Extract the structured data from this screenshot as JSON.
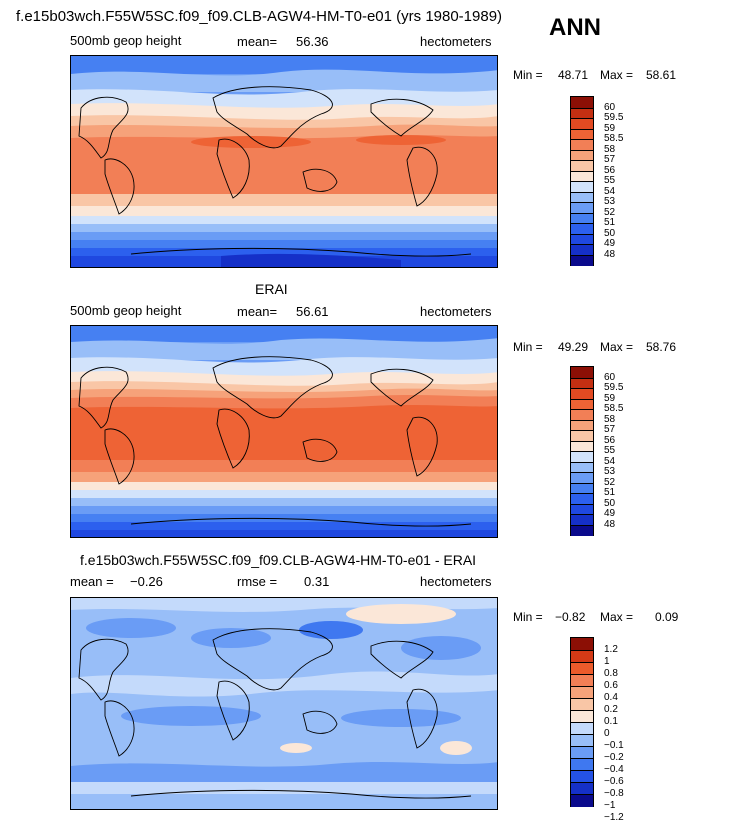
{
  "header": {
    "title": "f.e15b03wch.F55W5SC.f09_f09.CLB-AGW4-HM-T0-e01 (yrs 1980-1989)",
    "season": "ANN"
  },
  "palettes": {
    "full": [
      "#0a0a8c",
      "#1530c8",
      "#1f48e0",
      "#2c60ee",
      "#4680f2",
      "#6a9cf5",
      "#98bef8",
      "#d2e3fb",
      "#fbe7d8",
      "#f9c6a6",
      "#f6a27a",
      "#f27f56",
      "#ee6335",
      "#e34a22",
      "#c42f12",
      "#8c0f05"
    ],
    "diff": [
      "#0a0a8c",
      "#1530c8",
      "#2452e6",
      "#3f78f0",
      "#6a9cf5",
      "#98bef8",
      "#c4dafb",
      "#fbe7d8",
      "#f9c6a6",
      "#f6a27a",
      "#f27f56",
      "#ec5b2b",
      "#d43a16",
      "#8c0f05"
    ]
  },
  "panels": [
    {
      "id": "model",
      "title": "",
      "left_label": "500mb geop height",
      "center_label": "mean=",
      "center_value": "56.36",
      "units": "hectometers",
      "min_label": "Min =",
      "min_value": "48.71",
      "max_label": "Max =",
      "max_value": "58.61",
      "colorbar_ticks": [
        "60",
        "59.5",
        "59",
        "58.5",
        "58",
        "57",
        "56",
        "55",
        "54",
        "53",
        "52",
        "51",
        "50",
        "49",
        "48"
      ],
      "palette": "full"
    },
    {
      "id": "erai",
      "title": "ERAI",
      "left_label": "500mb geop height",
      "center_label": "mean=",
      "center_value": "56.61",
      "units": "hectometers",
      "min_label": "Min =",
      "min_value": "49.29",
      "max_label": "Max =",
      "max_value": "58.76",
      "colorbar_ticks": [
        "60",
        "59.5",
        "59",
        "58.5",
        "58",
        "57",
        "56",
        "55",
        "54",
        "53",
        "52",
        "51",
        "50",
        "49",
        "48"
      ],
      "palette": "full"
    },
    {
      "id": "diff",
      "title": "f.e15b03wch.F55W5SC.f09_f09.CLB-AGW4-HM-T0-e01 - ERAI",
      "left_label": "mean =",
      "left_value": "−0.26",
      "center_label": "rmse =",
      "center_value": "0.31",
      "units": "hectometers",
      "min_label": "Min =",
      "min_value": "−0.82",
      "max_label": "Max =",
      "max_value": "0.09",
      "colorbar_ticks": [
        "1.2",
        "1",
        "0.8",
        "0.6",
        "0.4",
        "0.2",
        "0.1",
        "0",
        "−0.1",
        "−0.2",
        "−0.4",
        "−0.6",
        "−0.8",
        "−1",
        "−1.2"
      ],
      "palette": "diff"
    }
  ]
}
